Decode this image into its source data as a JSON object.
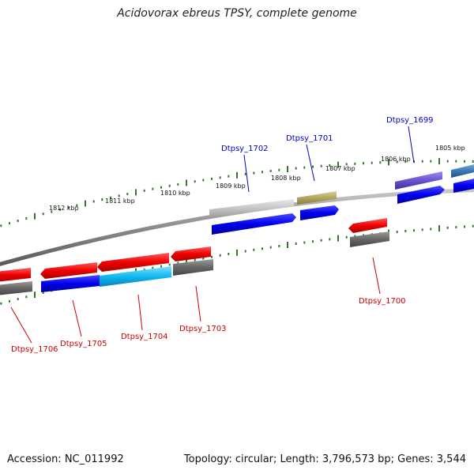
{
  "title": "Acidovorax ebreus TPSY, complete genome",
  "footer": {
    "accession": "Accession: NC_011992",
    "topology": "Topology: circular; Length: 3,796,573 bp; Genes: 3,544"
  },
  "ticks": [
    "1812 kbp",
    "1811 kbp",
    "1810 kbp",
    "1809 kbp",
    "1808 kbp",
    "1807 kbp",
    "1806 kbp",
    "1805 kbp"
  ],
  "gene_labels": [
    {
      "text": "Dtpsy_1702",
      "color": "#0000cc"
    },
    {
      "text": "Dtpsy_1701",
      "color": "#0000cc"
    },
    {
      "text": "Dtpsy_1699",
      "color": "#0000cc"
    },
    {
      "text": "Dtpsy_1700",
      "color": "#cc0000"
    },
    {
      "text": "Dtpsy_1703",
      "color": "#cc0000"
    },
    {
      "text": "Dtpsy_1704",
      "color": "#cc0000"
    },
    {
      "text": "Dtpsy_1705",
      "color": "#cc0000"
    },
    {
      "text": "Dtpsy_1706",
      "color": "#cc0000"
    }
  ],
  "colors": {
    "backbone": "#888888",
    "tick_marks": "#2e7d1e",
    "forward_label": "#0000cc",
    "reverse_label": "#cc0000"
  }
}
